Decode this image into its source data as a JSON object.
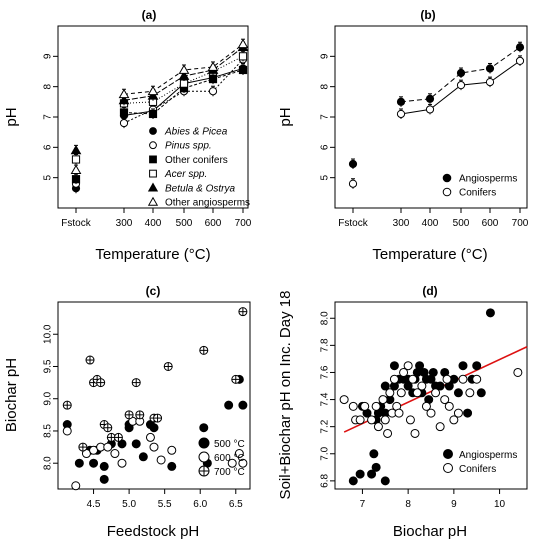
{
  "chart_data": [
    {
      "type": "line",
      "title": "(a)",
      "xlabel": "Temperature (°C)",
      "ylabel": "pH",
      "categories": [
        "Fstock",
        "300",
        "400",
        "500",
        "600",
        "700"
      ],
      "ylim": [
        4,
        10
      ],
      "yticks": [
        5,
        6,
        7,
        8,
        9
      ],
      "legend_position": "bottom-right",
      "series": [
        {
          "name": "Abies & Picea",
          "marker": "filled-circle",
          "values": [
            4.65,
            7.05,
            7.2,
            8.1,
            8.3,
            8.6
          ]
        },
        {
          "name": "Pinus spp.",
          "marker": "open-circle",
          "values": [
            4.8,
            6.8,
            7.25,
            7.85,
            7.85,
            8.9
          ]
        },
        {
          "name": "Other conifers",
          "marker": "filled-square",
          "values": [
            4.95,
            7.15,
            7.1,
            7.95,
            8.25,
            8.55
          ]
        },
        {
          "name": "Acer spp.",
          "marker": "open-square",
          "values": [
            5.6,
            7.45,
            7.5,
            8.1,
            8.5,
            9.0
          ]
        },
        {
          "name": "Betula & Ostrya",
          "marker": "filled-triangle",
          "values": [
            5.9,
            7.55,
            7.7,
            8.35,
            8.55,
            9.3
          ]
        },
        {
          "name": "Other angiosperms",
          "marker": "open-triangle",
          "values": [
            5.25,
            7.75,
            7.85,
            8.55,
            8.65,
            9.4
          ]
        }
      ]
    },
    {
      "type": "line",
      "title": "(b)",
      "xlabel": "Temperature (°C)",
      "ylabel": "pH",
      "categories": [
        "Fstock",
        "300",
        "400",
        "500",
        "600",
        "700"
      ],
      "ylim": [
        4,
        10
      ],
      "yticks": [
        5,
        6,
        7,
        8,
        9
      ],
      "legend_position": "bottom-right",
      "series": [
        {
          "name": "Angiosperms",
          "marker": "filled-circle",
          "values": [
            5.45,
            7.5,
            7.6,
            8.45,
            8.6,
            9.3
          ]
        },
        {
          "name": "Conifers",
          "marker": "open-circle",
          "values": [
            4.8,
            7.1,
            7.25,
            8.05,
            8.15,
            8.85
          ]
        }
      ]
    },
    {
      "type": "scatter",
      "title": "(c)",
      "xlabel": "Feedstock pH",
      "ylabel": "Biochar pH",
      "xlim": [
        4.0,
        6.7
      ],
      "ylim": [
        7.6,
        10.5
      ],
      "xticks": [
        4.5,
        5.0,
        5.5,
        6.0,
        6.5
      ],
      "yticks": [
        8.0,
        8.5,
        9.0,
        9.5,
        10.0
      ],
      "legend_position": "bottom-right",
      "series": [
        {
          "name": "500 °C",
          "marker": "filled-circle",
          "points": [
            [
              4.13,
              8.6
            ],
            [
              4.3,
              8.0
            ],
            [
              4.45,
              8.2
            ],
            [
              4.5,
              8.0
            ],
            [
              4.55,
              8.2
            ],
            [
              4.65,
              7.75
            ],
            [
              4.65,
              7.95
            ],
            [
              4.75,
              8.3
            ],
            [
              4.9,
              8.3
            ],
            [
              5.0,
              8.6
            ],
            [
              5.0,
              8.55
            ],
            [
              5.1,
              8.3
            ],
            [
              5.2,
              8.1
            ],
            [
              5.3,
              8.6
            ],
            [
              5.35,
              8.55
            ],
            [
              5.6,
              7.95
            ],
            [
              6.05,
              8.55
            ],
            [
              6.1,
              8.0
            ],
            [
              6.4,
              8.9
            ],
            [
              6.55,
              9.3
            ],
            [
              6.6,
              8.9
            ]
          ]
        },
        {
          "name": "600 °C",
          "marker": "open-circle",
          "points": [
            [
              4.13,
              8.5
            ],
            [
              4.25,
              7.65
            ],
            [
              4.4,
              8.15
            ],
            [
              4.5,
              8.2
            ],
            [
              4.6,
              8.25
            ],
            [
              4.7,
              8.25
            ],
            [
              4.8,
              8.15
            ],
            [
              4.9,
              8.0
            ],
            [
              5.05,
              8.65
            ],
            [
              5.15,
              8.65
            ],
            [
              5.3,
              8.4
            ],
            [
              5.35,
              8.25
            ],
            [
              5.45,
              8.05
            ],
            [
              5.6,
              8.2
            ],
            [
              6.05,
              8.3
            ],
            [
              6.45,
              8.0
            ],
            [
              6.55,
              8.15
            ],
            [
              6.6,
              8.0
            ]
          ]
        },
        {
          "name": "700 °C",
          "marker": "crossed-circle",
          "points": [
            [
              4.13,
              8.9
            ],
            [
              4.35,
              8.25
            ],
            [
              4.45,
              9.6
            ],
            [
              4.5,
              9.25
            ],
            [
              4.55,
              9.3
            ],
            [
              4.6,
              9.25
            ],
            [
              4.65,
              8.6
            ],
            [
              4.7,
              8.55
            ],
            [
              4.75,
              8.4
            ],
            [
              4.85,
              8.4
            ],
            [
              5.0,
              8.75
            ],
            [
              5.1,
              9.25
            ],
            [
              5.15,
              8.75
            ],
            [
              5.35,
              8.7
            ],
            [
              5.4,
              8.7
            ],
            [
              5.55,
              9.5
            ],
            [
              6.05,
              9.75
            ],
            [
              6.5,
              9.3
            ],
            [
              6.6,
              10.35
            ]
          ]
        }
      ]
    },
    {
      "type": "scatter",
      "title": "(d)",
      "xlabel": "Biochar pH",
      "ylabel": "Soil+Biochar pH on Inc. Day 18",
      "xlim": [
        6.4,
        10.6
      ],
      "ylim": [
        6.74,
        8.12
      ],
      "xticks": [
        7,
        8,
        9,
        10
      ],
      "yticks": [
        6.8,
        7.0,
        7.2,
        7.4,
        7.6,
        7.8,
        8.0
      ],
      "legend_position": "bottom-right",
      "trend_line": {
        "color": "#dd1111",
        "x": [
          6.6,
          10.6
        ],
        "y": [
          7.16,
          7.79
        ]
      },
      "series": [
        {
          "name": "Angiosperms",
          "marker": "filled-circle",
          "points": [
            [
              6.8,
              6.8
            ],
            [
              6.95,
              6.85
            ],
            [
              7.0,
              7.35
            ],
            [
              7.1,
              7.3
            ],
            [
              7.2,
              6.85
            ],
            [
              7.25,
              7.0
            ],
            [
              7.3,
              6.9
            ],
            [
              7.3,
              7.25
            ],
            [
              7.35,
              7.3
            ],
            [
              7.4,
              7.35
            ],
            [
              7.5,
              6.8
            ],
            [
              7.5,
              7.3
            ],
            [
              7.5,
              7.5
            ],
            [
              7.6,
              7.4
            ],
            [
              7.7,
              7.5
            ],
            [
              7.7,
              7.65
            ],
            [
              7.8,
              7.55
            ],
            [
              7.9,
              7.55
            ],
            [
              8.0,
              7.5
            ],
            [
              8.0,
              7.55
            ],
            [
              8.1,
              7.45
            ],
            [
              8.15,
              7.55
            ],
            [
              8.2,
              7.6
            ],
            [
              8.25,
              7.65
            ],
            [
              8.3,
              7.45
            ],
            [
              8.35,
              7.6
            ],
            [
              8.4,
              7.55
            ],
            [
              8.45,
              7.4
            ],
            [
              8.5,
              7.55
            ],
            [
              8.55,
              7.6
            ],
            [
              8.6,
              7.5
            ],
            [
              8.7,
              7.5
            ],
            [
              8.8,
              7.6
            ],
            [
              8.9,
              7.5
            ],
            [
              9.0,
              7.55
            ],
            [
              9.1,
              7.45
            ],
            [
              9.2,
              7.65
            ],
            [
              9.3,
              7.3
            ],
            [
              9.4,
              7.55
            ],
            [
              9.5,
              7.65
            ],
            [
              9.6,
              7.45
            ],
            [
              9.8,
              8.04
            ]
          ]
        },
        {
          "name": "Conifers",
          "marker": "open-circle",
          "points": [
            [
              6.6,
              7.4
            ],
            [
              6.8,
              7.35
            ],
            [
              6.85,
              7.25
            ],
            [
              6.95,
              7.25
            ],
            [
              7.05,
              7.35
            ],
            [
              7.2,
              7.25
            ],
            [
              7.3,
              7.35
            ],
            [
              7.35,
              7.2
            ],
            [
              7.45,
              7.4
            ],
            [
              7.5,
              7.25
            ],
            [
              7.55,
              7.15
            ],
            [
              7.6,
              7.45
            ],
            [
              7.65,
              7.3
            ],
            [
              7.7,
              7.55
            ],
            [
              7.75,
              7.35
            ],
            [
              7.8,
              7.3
            ],
            [
              7.85,
              7.45
            ],
            [
              7.9,
              7.6
            ],
            [
              8.0,
              7.65
            ],
            [
              8.05,
              7.25
            ],
            [
              8.1,
              7.55
            ],
            [
              8.15,
              7.15
            ],
            [
              8.2,
              7.45
            ],
            [
              8.3,
              7.5
            ],
            [
              8.4,
              7.35
            ],
            [
              8.5,
              7.3
            ],
            [
              8.6,
              7.45
            ],
            [
              8.7,
              7.2
            ],
            [
              8.8,
              7.4
            ],
            [
              8.85,
              7.55
            ],
            [
              8.9,
              7.35
            ],
            [
              9.0,
              7.25
            ],
            [
              9.1,
              7.3
            ],
            [
              9.2,
              7.55
            ],
            [
              9.35,
              7.45
            ],
            [
              9.5,
              7.55
            ],
            [
              10.4,
              7.6
            ]
          ]
        }
      ]
    }
  ]
}
